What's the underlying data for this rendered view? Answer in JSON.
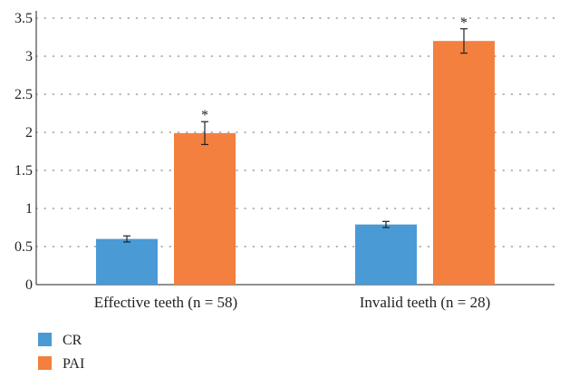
{
  "chart_data": {
    "type": "bar",
    "title": "",
    "xlabel": "",
    "ylabel": "",
    "ylim": [
      0,
      3.5
    ],
    "yticks": [
      "0",
      "0.5",
      "1",
      "1.5",
      "2",
      "2.5",
      "3",
      "3.5"
    ],
    "ytick_values": [
      0,
      0.5,
      1,
      1.5,
      2,
      2.5,
      3,
      3.5
    ],
    "grid": true,
    "grid_style": "dotted",
    "legend_position": "bottom-left",
    "categories": [
      "Effective teeth (n = 58)",
      "Invalid teeth (n = 28)"
    ],
    "series": [
      {
        "name": "CR",
        "color": "#4a9ad6",
        "values": [
          0.6,
          0.79
        ],
        "errors": [
          0.04,
          0.04
        ],
        "annotations": [
          "",
          ""
        ]
      },
      {
        "name": "PAI",
        "color": "#f3803f",
        "values": [
          1.99,
          3.2
        ],
        "errors": [
          0.15,
          0.16
        ],
        "annotations": [
          "*",
          "*"
        ]
      }
    ]
  }
}
